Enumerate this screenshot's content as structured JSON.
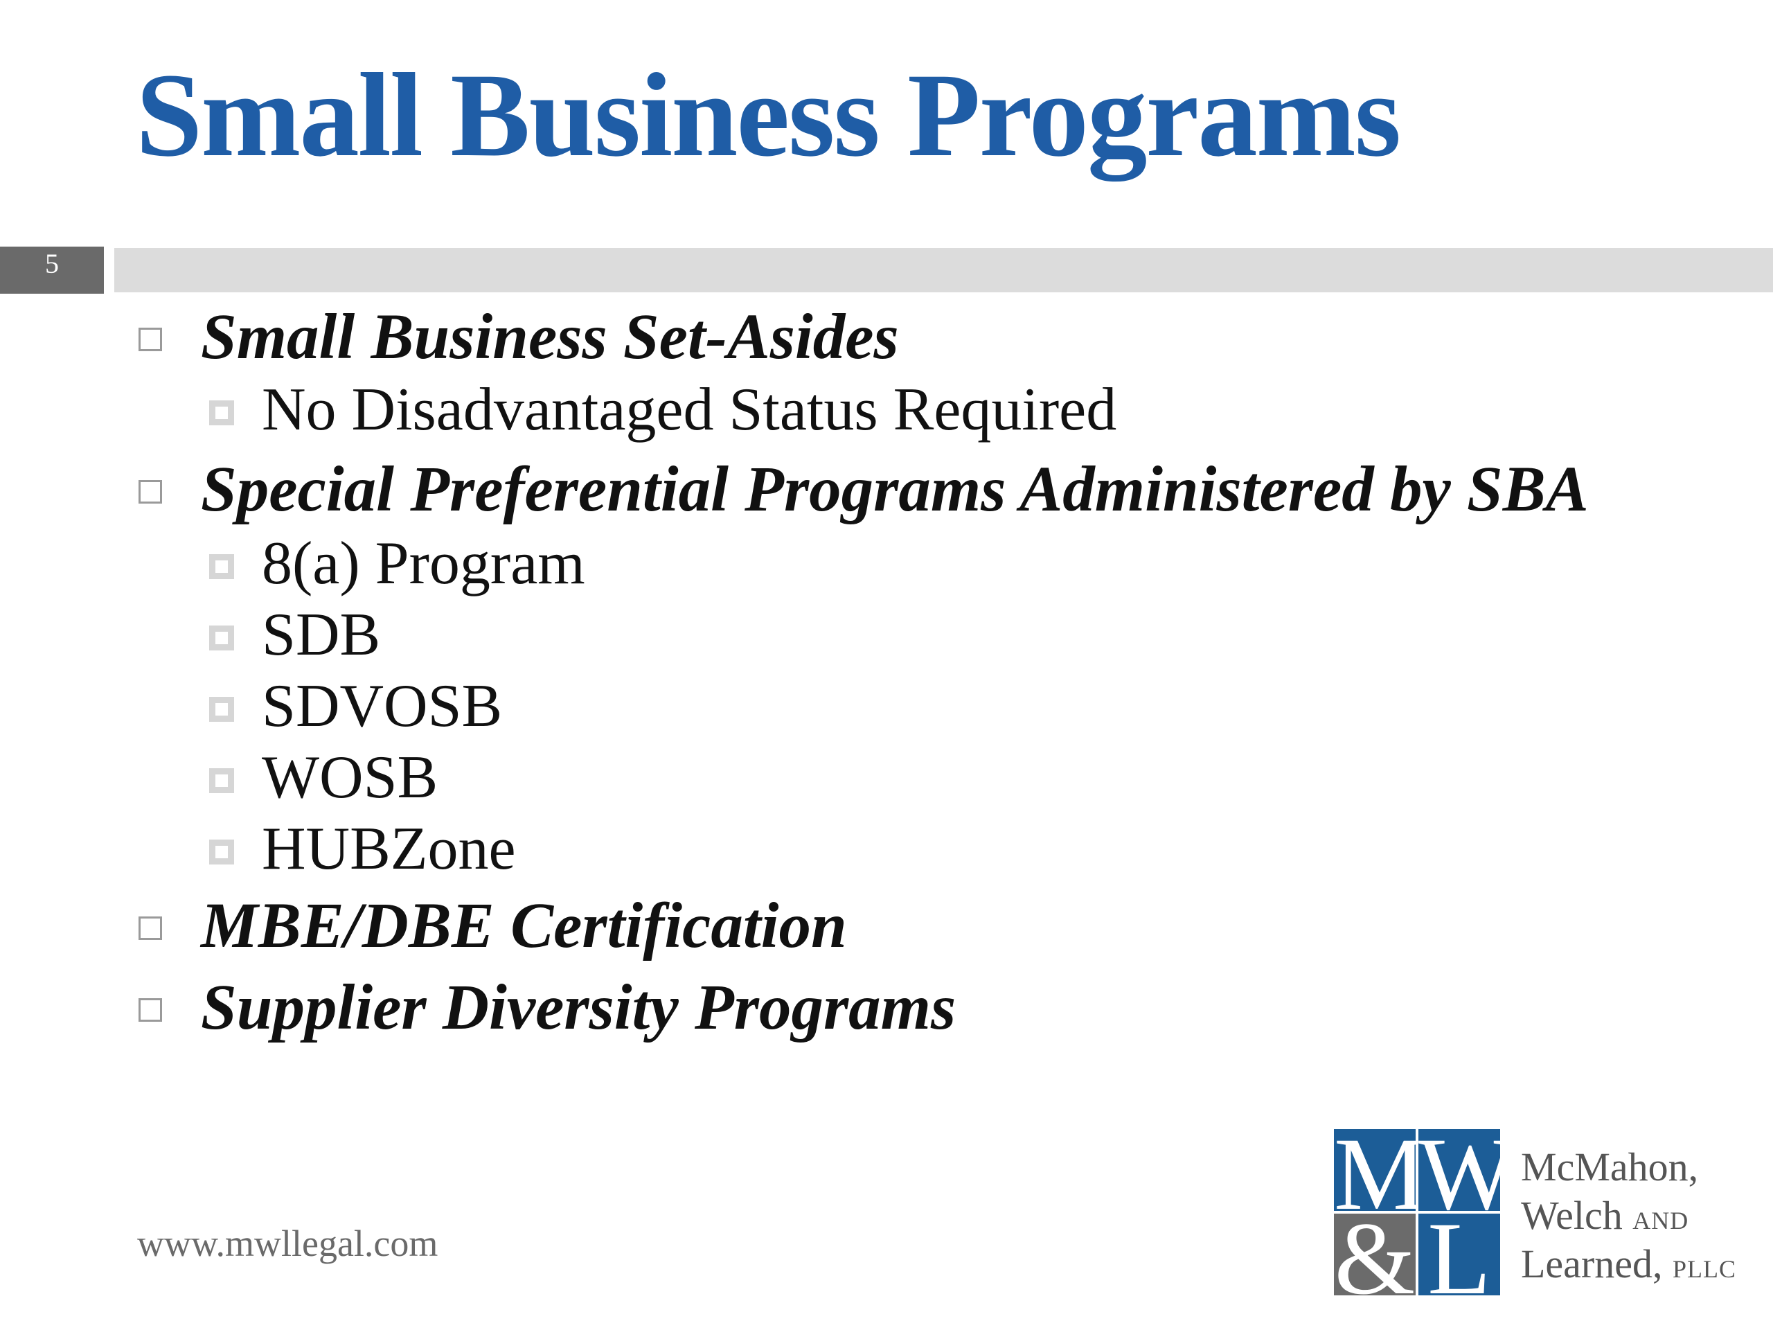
{
  "title": "Small Business Programs",
  "slide_number": "5",
  "bullets": [
    {
      "level": 1,
      "text": "Small Business Set-Asides"
    },
    {
      "level": 2,
      "text": "No Disadvantaged Status Required"
    },
    {
      "level": 1,
      "text": "Special Preferential Programs Administered by SBA"
    },
    {
      "level": 2,
      "text": "8(a) Program"
    },
    {
      "level": 2,
      "text": "SDB"
    },
    {
      "level": 2,
      "text": "SDVOSB"
    },
    {
      "level": 2,
      "text": "WOSB"
    },
    {
      "level": 2,
      "text": "HUBZone"
    },
    {
      "level": 1,
      "text": "MBE/DBE Certification"
    },
    {
      "level": 1,
      "text": "Supplier Diversity Programs"
    }
  ],
  "footer": {
    "url": "www.mwllegal.com"
  },
  "logo": {
    "monogram": [
      "M",
      "W",
      "&",
      "L"
    ],
    "firm_line1": "McMahon,",
    "firm_line2": "Welch",
    "firm_line2_small": "AND",
    "firm_line3": "Learned,",
    "firm_line3_small": "PLLC"
  },
  "colors": {
    "title": "#1f5da6",
    "logo_blue": "#1c5d97",
    "logo_gray": "#6b6b6b",
    "bar": "#dcdcdc"
  }
}
